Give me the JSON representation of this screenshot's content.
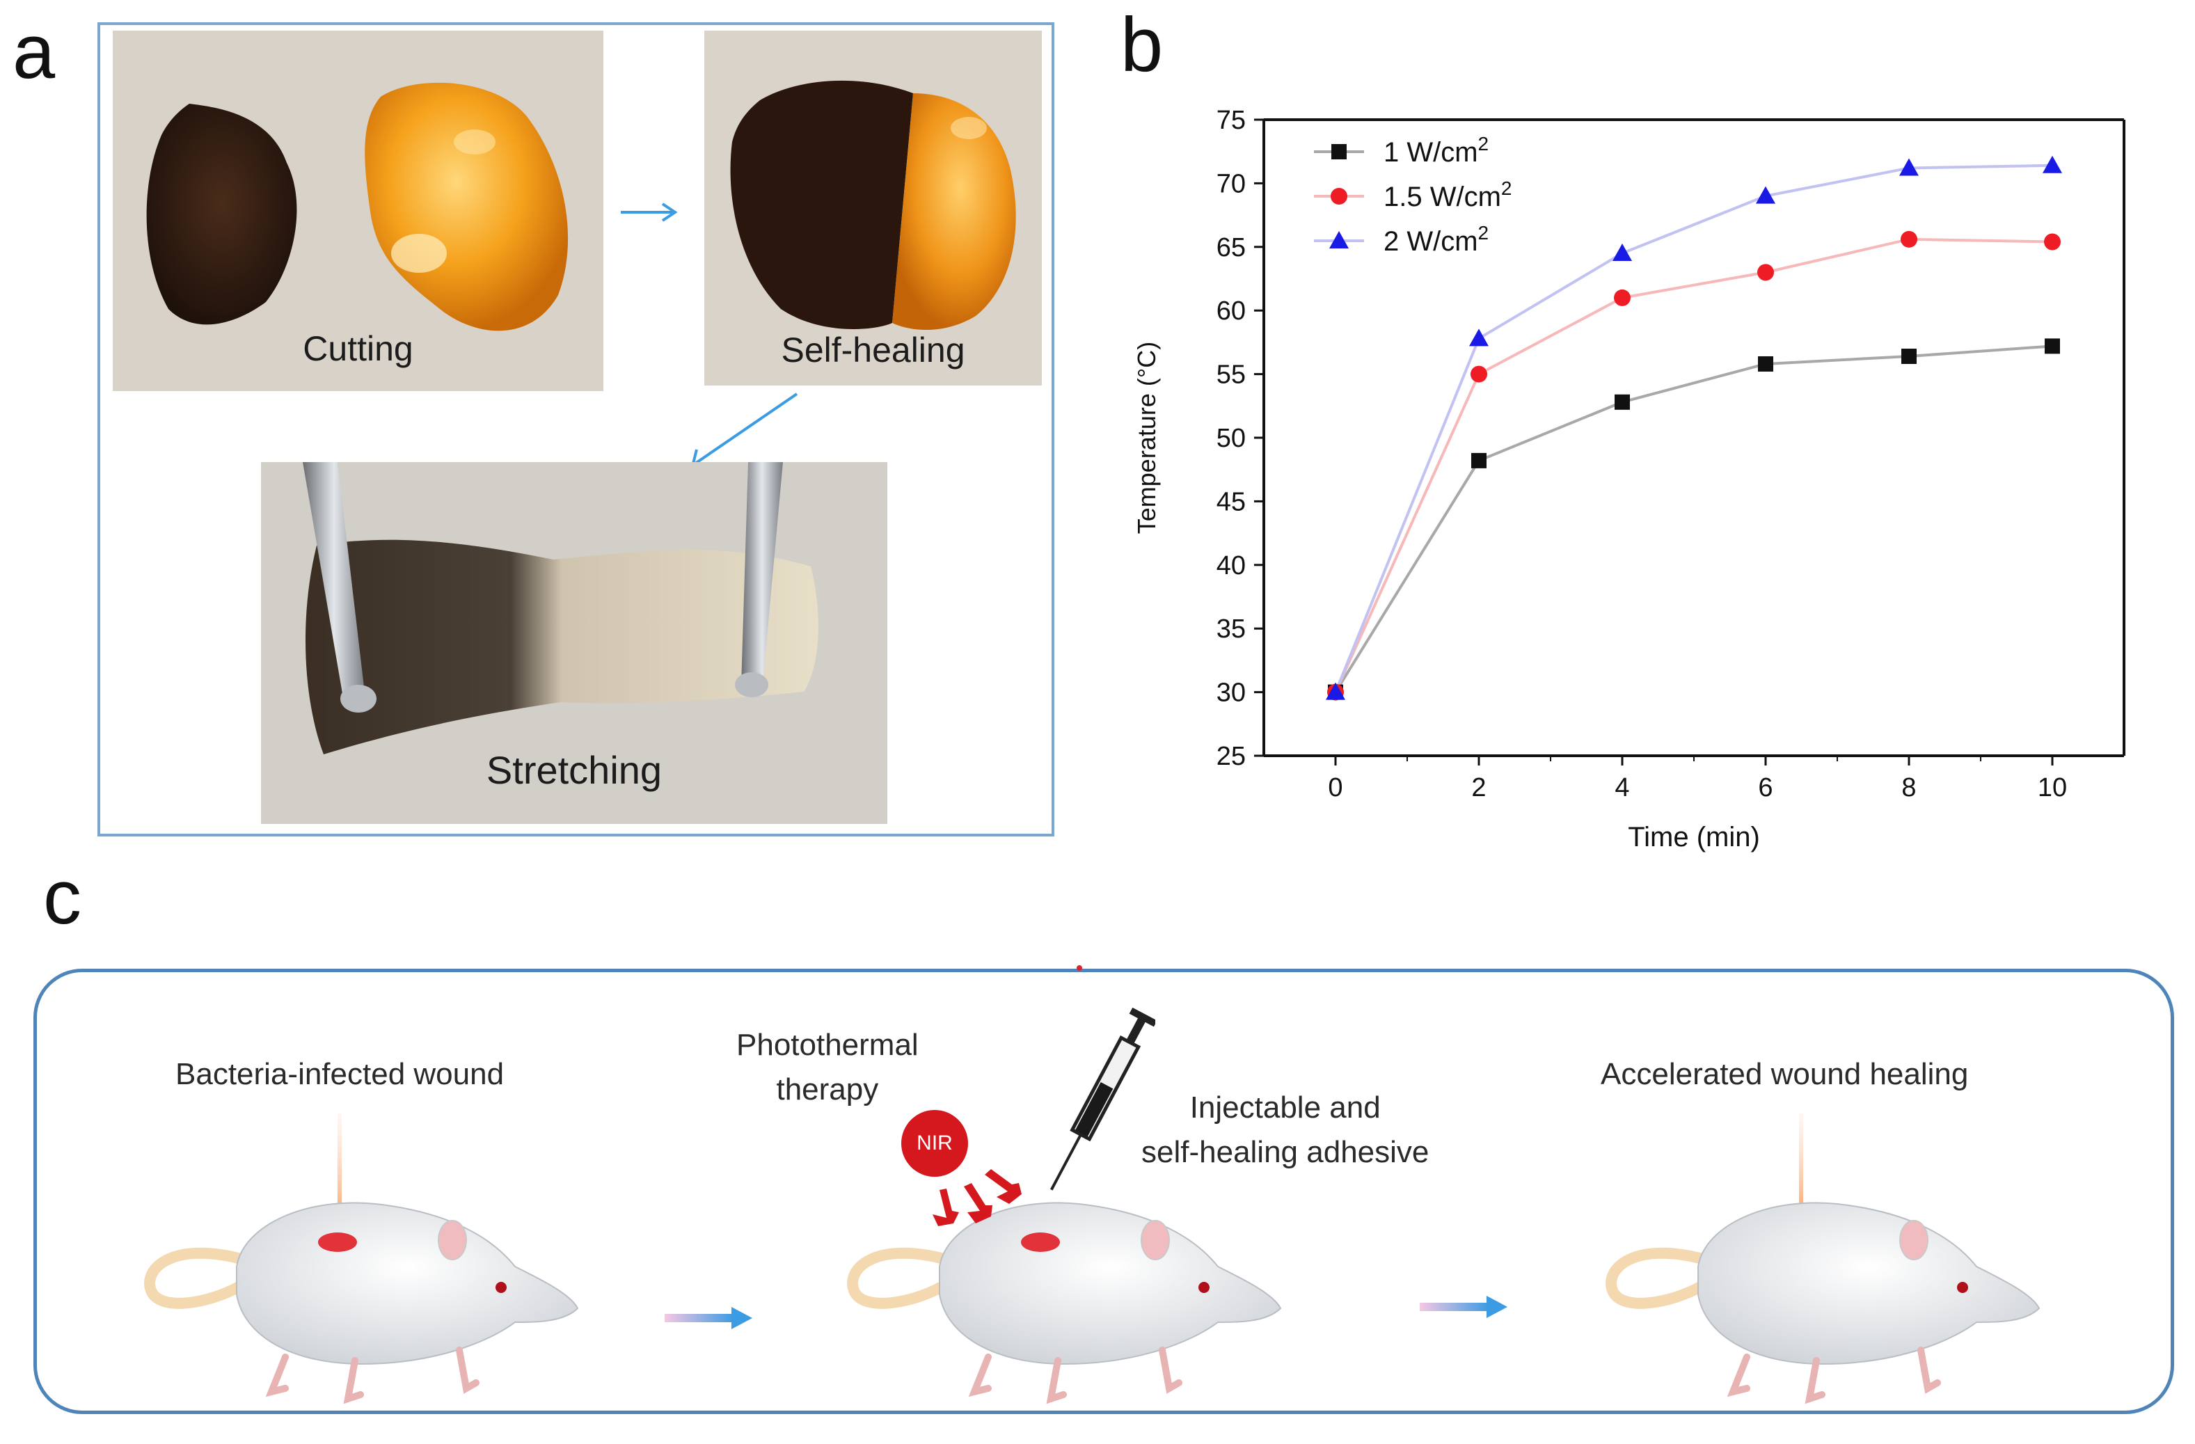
{
  "panel_labels": {
    "a": "a",
    "b": "b",
    "c": "c"
  },
  "panel_a": {
    "cutting_label": "Cutting",
    "self_healing_label": "Self-healing",
    "stretching_label": "Stretching"
  },
  "chart_data": {
    "type": "line",
    "title": "",
    "xlabel": "Time (min)",
    "ylabel": "Temperature (°C)",
    "x": [
      0,
      2,
      4,
      6,
      8,
      10
    ],
    "xlim": [
      -1,
      11
    ],
    "ylim": [
      25,
      75
    ],
    "xticks": [
      0,
      2,
      4,
      6,
      8,
      10
    ],
    "yticks": [
      25,
      30,
      35,
      40,
      45,
      50,
      55,
      60,
      65,
      70,
      75
    ],
    "grid": false,
    "legend_position": "top-left",
    "series": [
      {
        "name": "1 W/cm",
        "sup": "2",
        "marker": "square",
        "color": "#111111",
        "line_color": "#a8a8a8",
        "values": [
          30,
          48.2,
          52.8,
          55.8,
          56.4,
          57.2
        ]
      },
      {
        "name": "1.5 W/cm",
        "sup": "2",
        "marker": "circle",
        "color": "#ee1c24",
        "line_color": "#f6b8b8",
        "values": [
          30,
          55,
          61,
          63,
          65.6,
          65.4
        ]
      },
      {
        "name": "2 W/cm",
        "sup": "2",
        "marker": "triangle",
        "color": "#1a1ae6",
        "line_color": "#c2c2f2",
        "values": [
          30,
          57.8,
          64.5,
          69,
          71.2,
          71.4
        ]
      }
    ]
  },
  "panel_c": {
    "step1_label": "Bacteria-infected wound",
    "photothermal_line1": "Photothermal",
    "photothermal_line2": "therapy",
    "nir_label": "NIR",
    "injectable_line1": "Injectable and",
    "injectable_line2": "self-healing adhesive",
    "step3_label": "Accelerated wound healing"
  },
  "colors": {
    "frame_a": "#7aa6cf",
    "frame_c": "#4e84b7",
    "arrow": "#3b9be3"
  }
}
